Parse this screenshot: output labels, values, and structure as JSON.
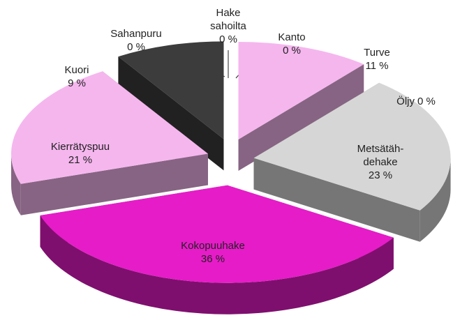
{
  "chart_data": {
    "type": "pie3d",
    "categories": [
      "Hake\nsahoilta",
      "Kanto",
      "Turve",
      "Öljy",
      "Metsätäh-\ndehake",
      "Kokopuuhake",
      "Kierrätyspuu",
      "Kuori",
      "Sahanpuru"
    ],
    "values": [
      0,
      0,
      11,
      0,
      23,
      36,
      21,
      9,
      0
    ],
    "value_labels": [
      "0 %",
      "0 %",
      "11 %",
      "0 %",
      "23 %",
      "36 %",
      "21 %",
      "9 %",
      "0 %"
    ],
    "colors": [
      "#9a9a9a",
      "#9a9a9a",
      "#f5b6ee",
      "#b5009a",
      "#d6d6d6",
      "#e61cc8",
      "#f5b6ee",
      "#3c3c3c",
      "#9a9a9a"
    ]
  }
}
